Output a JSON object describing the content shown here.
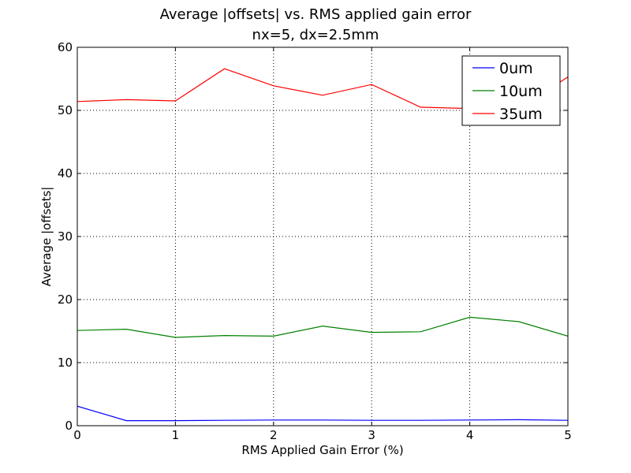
{
  "chart_data": {
    "type": "line",
    "title": "Average |offsets| vs. RMS applied gain error",
    "subtitle": "nx=5, dx=2.5mm",
    "xlabel": "RMS Applied Gain Error (%)",
    "ylabel": "Average |offsets|",
    "xlim": [
      0,
      5
    ],
    "ylim": [
      0,
      60
    ],
    "xticks": [
      0,
      1,
      2,
      3,
      4,
      5
    ],
    "yticks": [
      0,
      10,
      20,
      30,
      40,
      50,
      60
    ],
    "grid": true,
    "legend_position": "top-right",
    "x": [
      0,
      0.5,
      1,
      1.5,
      2,
      2.5,
      3,
      3.5,
      4,
      4.5,
      5
    ],
    "series": [
      {
        "name": "0um",
        "color": "#0000ff",
        "values": [
          3.1,
          0.8,
          0.8,
          0.85,
          0.9,
          0.9,
          0.85,
          0.85,
          0.9,
          0.95,
          0.85
        ]
      },
      {
        "name": "10um",
        "color": "#008000",
        "values": [
          15.1,
          15.3,
          14.0,
          14.3,
          14.2,
          15.8,
          14.8,
          14.9,
          17.2,
          16.5,
          14.2
        ]
      },
      {
        "name": "35um",
        "color": "#ff0000",
        "values": [
          51.4,
          51.7,
          51.5,
          56.6,
          53.9,
          52.4,
          54.1,
          50.5,
          50.3,
          50.3,
          55.3
        ]
      }
    ]
  }
}
